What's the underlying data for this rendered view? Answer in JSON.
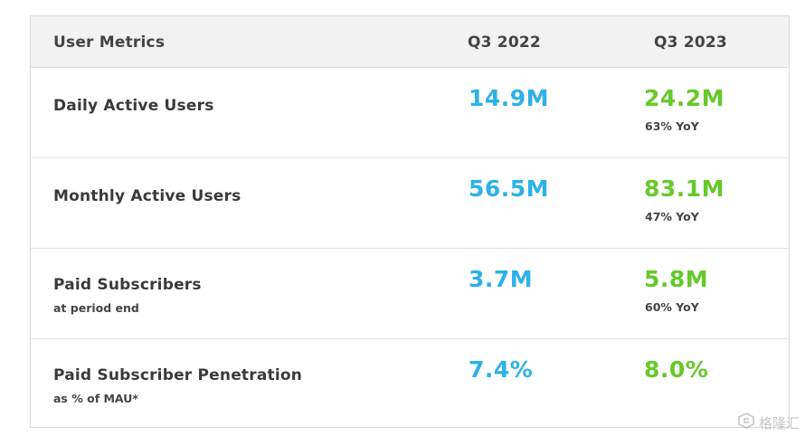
{
  "table": {
    "headers": {
      "metric": "User Metrics",
      "q3_2022": "Q3 2022",
      "q3_2023": "Q3 2023"
    },
    "rows": [
      {
        "label": "Daily Active Users",
        "sub": "",
        "q3_2022": "14.9M",
        "q3_2023": "24.2M",
        "yoy": "63% YoY"
      },
      {
        "label": "Monthly Active Users",
        "sub": "",
        "q3_2022": "56.5M",
        "q3_2023": "83.1M",
        "yoy": "47% YoY"
      },
      {
        "label": "Paid Subscribers",
        "sub": "at period end",
        "q3_2022": "3.7M",
        "q3_2023": "5.8M",
        "yoy": "60% YoY"
      },
      {
        "label": "Paid Subscriber Penetration",
        "sub": "as % of MAU*",
        "q3_2022": "7.4%",
        "q3_2023": "8.0%",
        "yoy": ""
      }
    ]
  },
  "colors": {
    "q3_2022_value": "#2cb1e8",
    "q3_2023_value": "#66c92a",
    "header_background": "#f2f2f2"
  },
  "watermark": {
    "text": "格隆汇",
    "icon": "glh-logo-icon"
  }
}
